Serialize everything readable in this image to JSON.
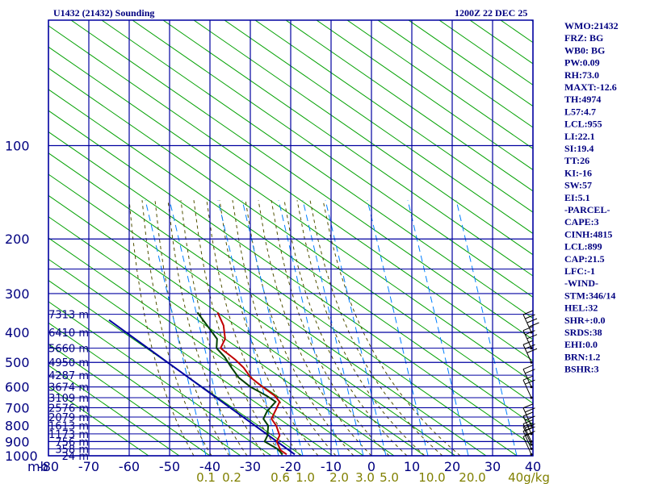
{
  "header": {
    "station": "U1432 (21432) Sounding",
    "time": "1200Z 22 DEC 25"
  },
  "chart_data": {
    "type": "skew-t",
    "pressure_levels": [
      100,
      200,
      300,
      400,
      500,
      600,
      700,
      800,
      900,
      1000
    ],
    "temp_ticks": [
      -80,
      -70,
      -60,
      -50,
      -40,
      -30,
      -20,
      -10,
      0,
      10,
      20,
      30,
      40
    ],
    "temp_unit_label": "mb",
    "mixing_ratio_labels": [
      "0.1",
      "0.2",
      "0.6",
      "1.0",
      "2.0",
      "3.0",
      "5.0",
      "10.0",
      "20.0",
      "40g/kg"
    ],
    "height_labels": [
      {
        "text": "7313 m",
        "p": 350
      },
      {
        "text": "6410 m",
        "p": 400
      },
      {
        "text": "5660 m",
        "p": 450
      },
      {
        "text": "4950 m",
        "p": 500
      },
      {
        "text": "4287 m",
        "p": 550
      },
      {
        "text": "3674 m",
        "p": 600
      },
      {
        "text": "3109 m",
        "p": 650
      },
      {
        "text": "2576 m",
        "p": 700
      },
      {
        "text": "2079 m",
        "p": 750
      },
      {
        "text": "1613 m",
        "p": 800
      },
      {
        "text": "1173 m",
        "p": 850
      },
      {
        "text": "756 m",
        "p": 900
      },
      {
        "text": "358 m",
        "p": 950
      },
      {
        "text": "24 m",
        "p": 1000
      }
    ],
    "temperature_profile": [
      {
        "p": 990,
        "t": -20
      },
      {
        "p": 960,
        "t": -22
      },
      {
        "p": 900,
        "t": -24
      },
      {
        "p": 860,
        "t": -24
      },
      {
        "p": 800,
        "t": -26
      },
      {
        "p": 760,
        "t": -28
      },
      {
        "p": 720,
        "t": -28
      },
      {
        "p": 670,
        "t": -28
      },
      {
        "p": 640,
        "t": -30
      },
      {
        "p": 600,
        "t": -34
      },
      {
        "p": 560,
        "t": -38
      },
      {
        "p": 520,
        "t": -41
      },
      {
        "p": 490,
        "t": -44
      },
      {
        "p": 450,
        "t": -49
      },
      {
        "p": 420,
        "t": -49
      },
      {
        "p": 380,
        "t": -51
      },
      {
        "p": 345,
        "t": -54
      }
    ],
    "dewpoint_profile": [
      {
        "p": 990,
        "t": -21
      },
      {
        "p": 950,
        "t": -23
      },
      {
        "p": 900,
        "t": -27
      },
      {
        "p": 860,
        "t": -27
      },
      {
        "p": 800,
        "t": -28
      },
      {
        "p": 760,
        "t": -30
      },
      {
        "p": 720,
        "t": -30
      },
      {
        "p": 670,
        "t": -29
      },
      {
        "p": 640,
        "t": -32
      },
      {
        "p": 600,
        "t": -37
      },
      {
        "p": 560,
        "t": -41
      },
      {
        "p": 520,
        "t": -44
      },
      {
        "p": 480,
        "t": -47
      },
      {
        "p": 450,
        "t": -50
      },
      {
        "p": 420,
        "t": -51
      },
      {
        "p": 390,
        "t": -54
      },
      {
        "p": 345,
        "t": -59
      }
    ],
    "parcel_line": [
      {
        "p": 990,
        "t": -18
      },
      {
        "p": 365,
        "t": -80
      }
    ],
    "isotherms": true,
    "dry_adiabats": true,
    "moist_adiabats": true,
    "mixing_ratio_lines": true,
    "wind_barbs": [
      {
        "p": 990,
        "speed_kt": 10,
        "dir": 340
      },
      {
        "p": 950,
        "speed_kt": 15,
        "dir": 330
      },
      {
        "p": 920,
        "speed_kt": 15,
        "dir": 330
      },
      {
        "p": 900,
        "speed_kt": 20,
        "dir": 320
      },
      {
        "p": 850,
        "speed_kt": 20,
        "dir": 320
      },
      {
        "p": 800,
        "speed_kt": 20,
        "dir": 320
      },
      {
        "p": 650,
        "speed_kt": 20,
        "dir": 340
      },
      {
        "p": 600,
        "speed_kt": 20,
        "dir": 340
      },
      {
        "p": 500,
        "speed_kt": 25,
        "dir": 350
      },
      {
        "p": 450,
        "speed_kt": 25,
        "dir": 350
      },
      {
        "p": 400,
        "speed_kt": 40,
        "dir": 0
      }
    ]
  },
  "indices": [
    "WMO:21432",
    "FRZ: BG",
    "WB0: BG",
    "PW:0.09",
    "RH:73.0",
    "MAXT:-12.6",
    "TH:4974",
    "L57:4.7",
    "LCL:955",
    "LI:22.1",
    "SI:19.4",
    "TT:26",
    "KI:-16",
    "SW:57",
    "EI:5.1",
    "-PARCEL-",
    "CAPE:3",
    "CINH:4815",
    "LCL:899",
    "CAP:21.5",
    "LFC:-1",
    "-WIND-",
    "STM:346/14",
    "HEL:32",
    "SHR+:0.0",
    "SRDS:38",
    "EHI:0.0",
    "BRN:1.2",
    "BSHR:3"
  ],
  "colors": {
    "grid": "#0000a0",
    "dry_adiabat": "#00a000",
    "moist_adiabat": "#505000",
    "mixing_ratio": "#0080ff",
    "temperature": "#c00000",
    "dewpoint": "#004000",
    "parcel": "#0000a0",
    "labels": "#000080",
    "mixratio_text": "#808000"
  }
}
